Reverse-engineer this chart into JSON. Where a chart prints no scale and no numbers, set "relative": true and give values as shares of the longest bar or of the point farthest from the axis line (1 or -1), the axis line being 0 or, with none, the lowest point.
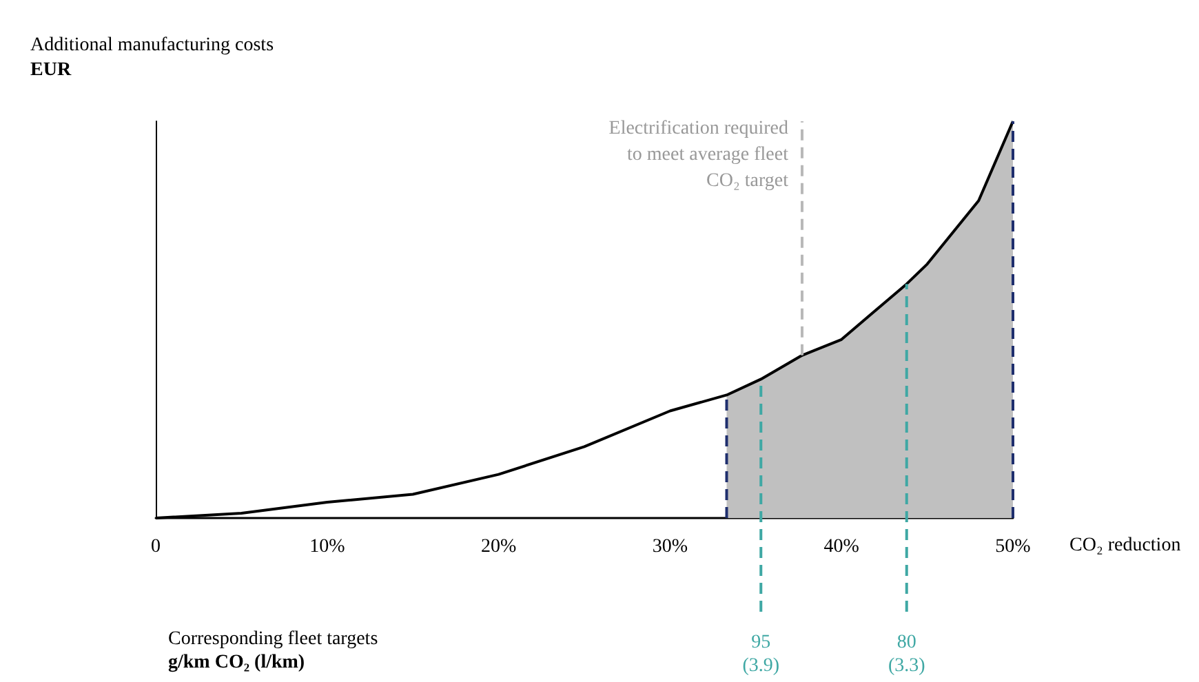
{
  "chart_data": {
    "type": "line",
    "title": "Additional manufacturing costs",
    "ylabel": "EUR",
    "xlabel": "CO₂ reduction",
    "relative": true,
    "xlim": [
      0,
      50
    ],
    "xticks": [
      {
        "value": 0,
        "label": "0"
      },
      {
        "value": 10,
        "label": "10%"
      },
      {
        "value": 20,
        "label": "20%"
      },
      {
        "value": 30,
        "label": "30%"
      },
      {
        "value": 40,
        "label": "40%"
      },
      {
        "value": 50,
        "label": "50%"
      }
    ],
    "grid": false,
    "marker": "none",
    "line_style": "solid",
    "series": [
      {
        "color": "#000000",
        "x": [
          0,
          5,
          10,
          15,
          20,
          25,
          30,
          33.3,
          35.3,
          37.7,
          40,
          43.8,
          45,
          48,
          50
        ],
        "values": [
          0,
          0.012,
          0.04,
          0.06,
          0.11,
          0.18,
          0.27,
          0.31,
          0.35,
          0.41,
          0.45,
          0.59,
          0.64,
          0.8,
          1
        ]
      },
      {
        "type": "area",
        "color": "#c0c0c0",
        "x": [
          33.3,
          35.3,
          37.7,
          40,
          43.8,
          45,
          48,
          50
        ],
        "values": [
          0.31,
          0.35,
          0.41,
          0.45,
          0.59,
          0.64,
          0.8,
          1
        ]
      }
    ],
    "ref_lines": [
      {
        "axis": "x",
        "value": 33.3,
        "color": "#1f2f6e",
        "line_style": "dashed"
      },
      {
        "axis": "x",
        "value": 50,
        "color": "#1f2f6e",
        "line_style": "dashed"
      },
      {
        "axis": "x",
        "value": 37.7,
        "color": "#b8b8b8",
        "line_style": "dashed"
      },
      {
        "axis": "x",
        "value": 35.3,
        "color": "#3fa8a4",
        "line_style": "dashed"
      },
      {
        "axis": "x",
        "value": 43.8,
        "color": "#3fa8a4",
        "line_style": "dashed"
      }
    ],
    "annotations": [
      {
        "text": "Electrification required to meet average fleet CO₂ target",
        "x": 37.7,
        "y": 1
      },
      "Corresponding fleet targets",
      "g/km CO₂ (l/km)",
      "95 (3.9)",
      "80 (3.3)"
    ]
  }
}
